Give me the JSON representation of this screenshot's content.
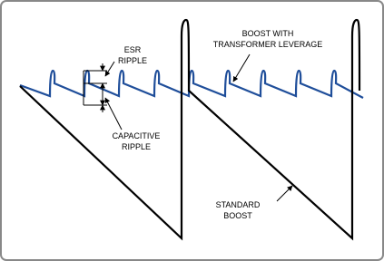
{
  "annotations": [
    {
      "lines": [
        "ESR",
        "RIPPLE"
      ]
    },
    {
      "lines": [
        "CAPACITIVE",
        "RIPPLE"
      ]
    },
    {
      "lines": [
        "BOOST WITH",
        "TRANSFORMER LEVERAGE"
      ]
    },
    {
      "lines": [
        "STANDARD",
        "BOOST"
      ]
    }
  ]
}
